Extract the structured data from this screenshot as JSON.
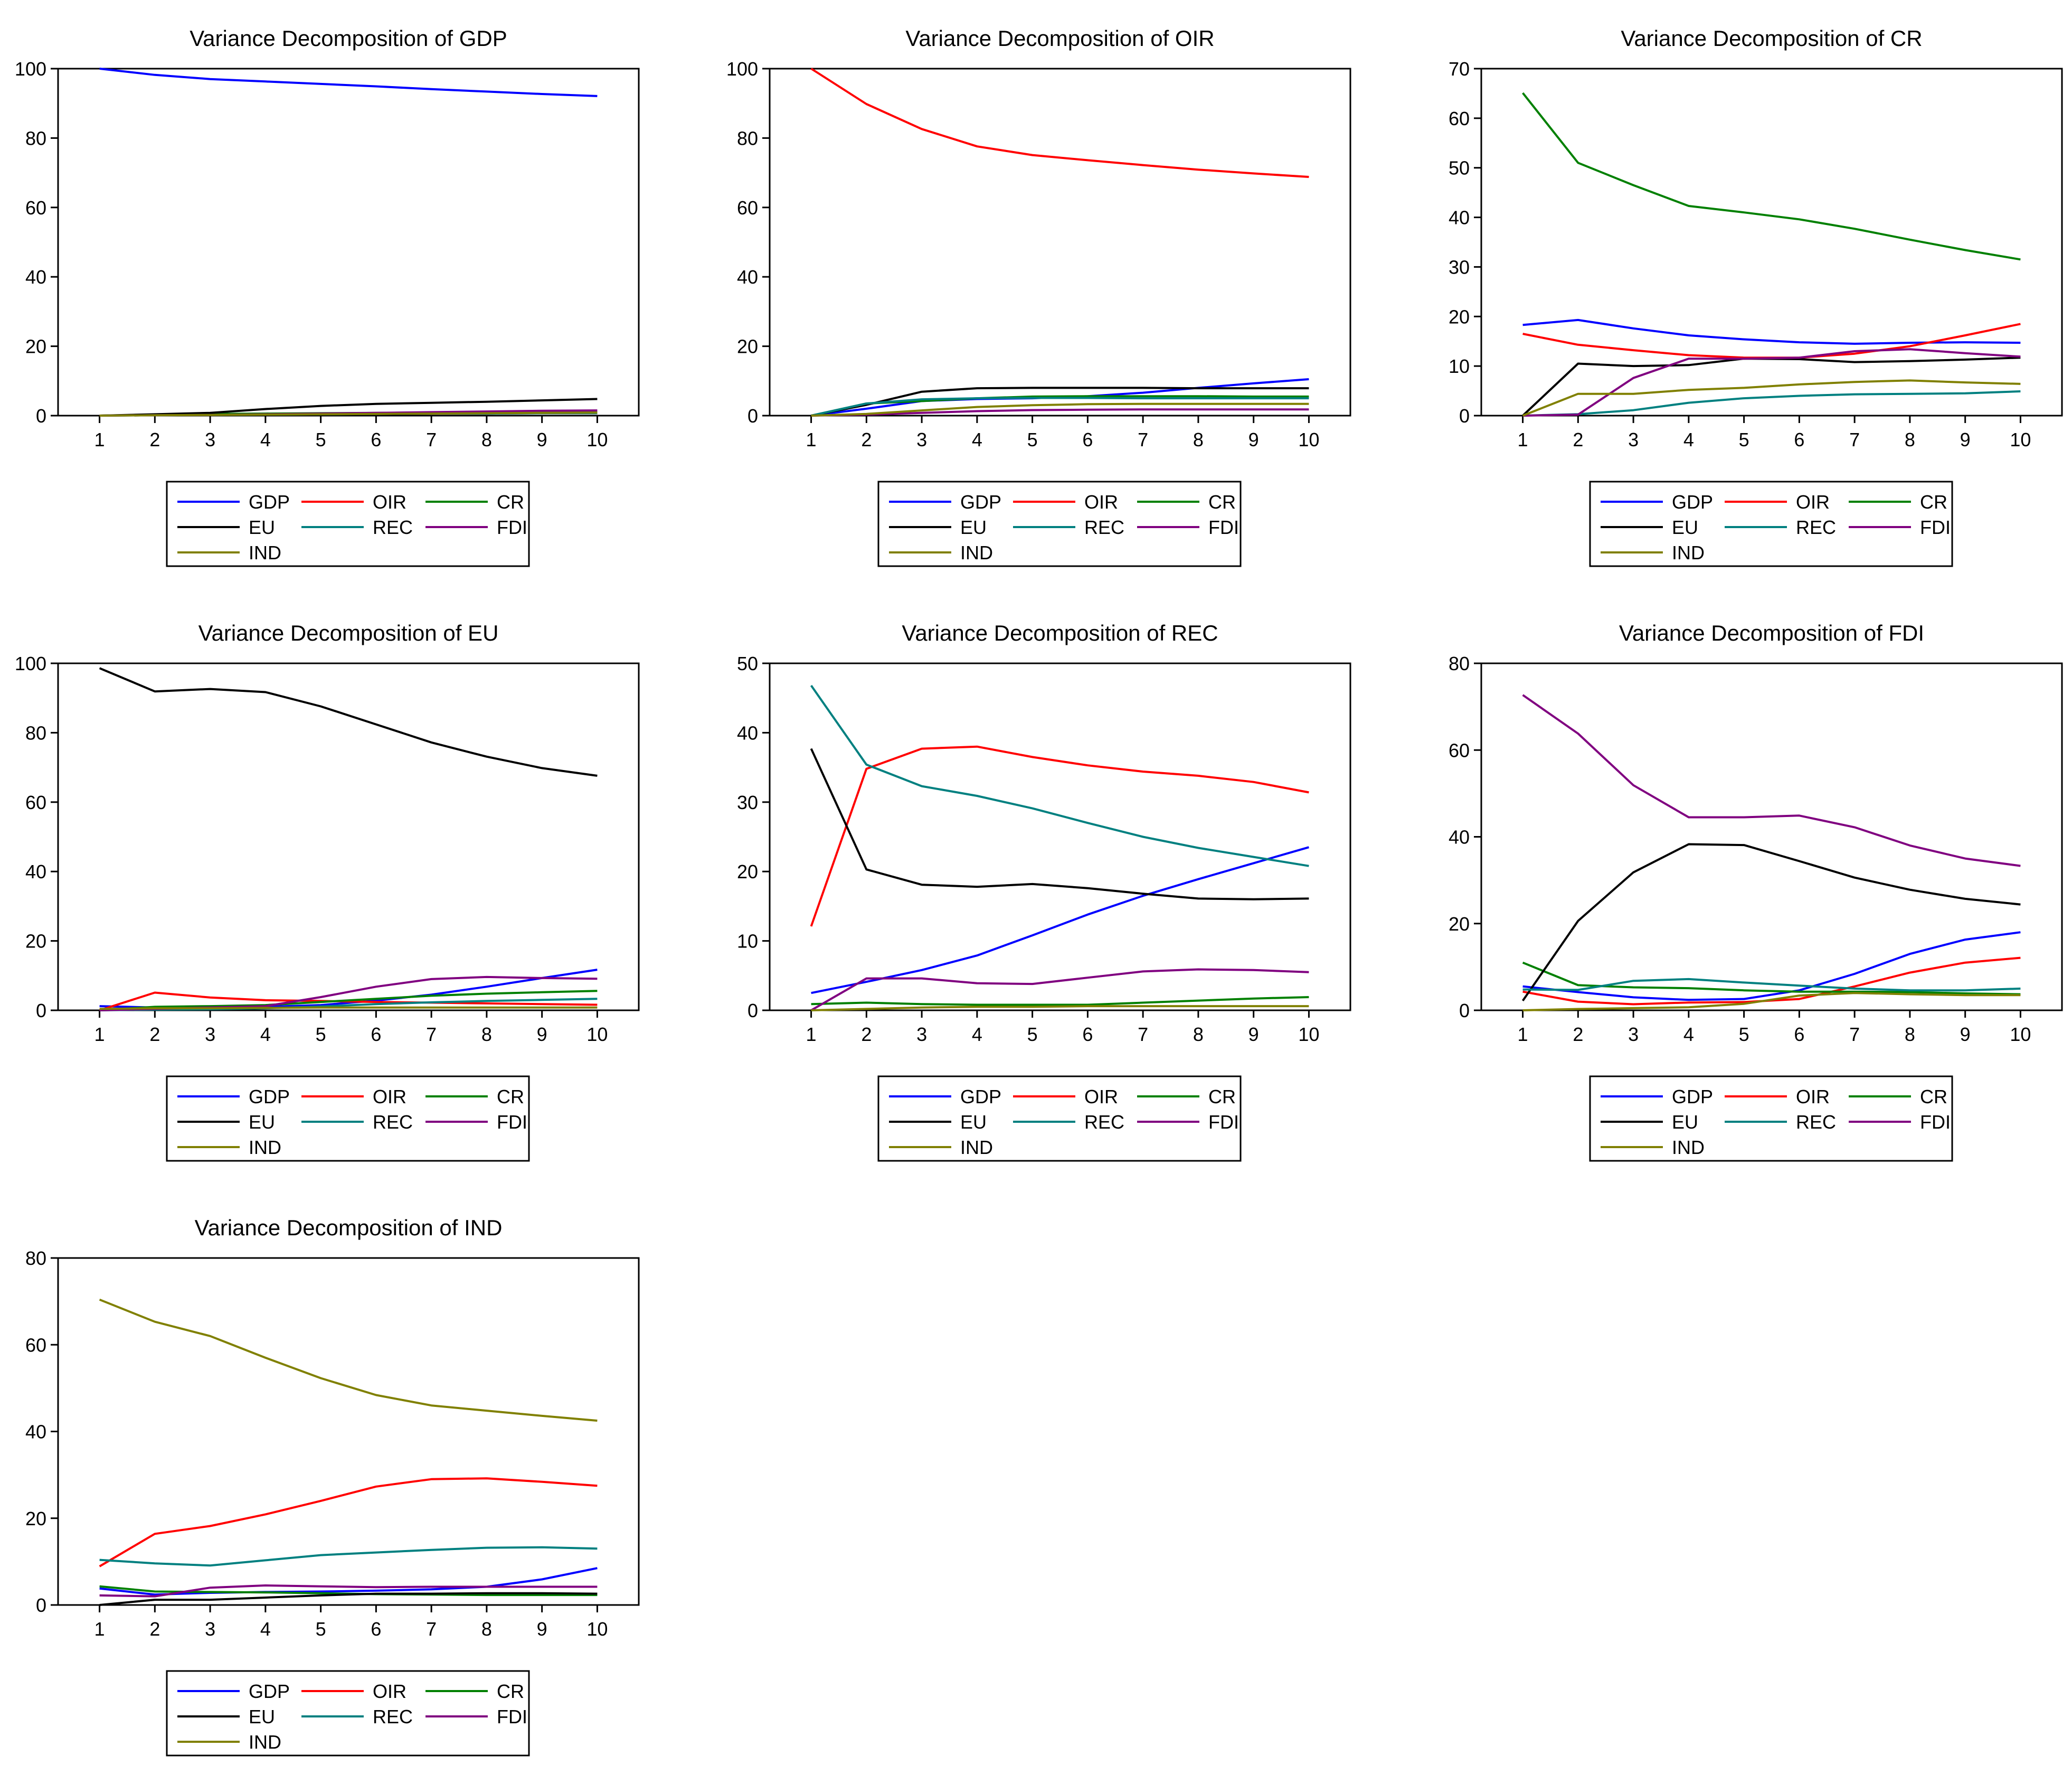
{
  "figure": {
    "title": "Variance Decomposition"
  },
  "colors": {
    "GDP": "#0000ff",
    "OIR": "#ff0000",
    "CR": "#008000",
    "EU": "#000000",
    "REC": "#008080",
    "FDI": "#800080",
    "IND": "#808000"
  },
  "chart_data": [
    {
      "type": "line",
      "title": "Variance Decomposition of GDP",
      "x": [
        1,
        2,
        3,
        4,
        5,
        6,
        7,
        8,
        9,
        10
      ],
      "ylim": [
        0,
        100
      ],
      "yticks": [
        0,
        20,
        40,
        60,
        80,
        100
      ],
      "legend_position": "bottom",
      "series": [
        {
          "name": "GDP",
          "values": [
            100,
            98.2,
            97,
            96.3,
            95.6,
            94.9,
            94.1,
            93.4,
            92.7,
            92.1
          ]
        },
        {
          "name": "OIR",
          "values": [
            0,
            0.2,
            0.3,
            0.4,
            0.5,
            0.5,
            0.6,
            0.6,
            0.7,
            0.7
          ]
        },
        {
          "name": "CR",
          "values": [
            0,
            0.3,
            0.5,
            0.6,
            0.7,
            0.8,
            0.9,
            1.0,
            1.0,
            1.1
          ]
        },
        {
          "name": "EU",
          "values": [
            0,
            0.4,
            0.8,
            1.9,
            2.8,
            3.4,
            3.7,
            4.0,
            4.4,
            4.8
          ]
        },
        {
          "name": "REC",
          "values": [
            0,
            0.1,
            0.2,
            0.3,
            0.4,
            0.5,
            0.6,
            0.6,
            0.7,
            0.7
          ]
        },
        {
          "name": "FDI",
          "values": [
            0,
            0.1,
            0.2,
            0.4,
            0.6,
            0.8,
            1.0,
            1.2,
            1.4,
            1.5
          ]
        },
        {
          "name": "IND",
          "values": [
            0,
            0.1,
            0.2,
            0.3,
            0.4,
            0.5,
            0.6,
            0.7,
            0.8,
            0.9
          ]
        }
      ]
    },
    {
      "type": "line",
      "title": "Variance Decomposition of OIR",
      "x": [
        1,
        2,
        3,
        4,
        5,
        6,
        7,
        8,
        9,
        10
      ],
      "ylim": [
        0,
        100
      ],
      "yticks": [
        0,
        20,
        40,
        60,
        80,
        100
      ],
      "legend_position": "bottom",
      "series": [
        {
          "name": "GDP",
          "values": [
            0,
            2.0,
            4.2,
            4.8,
            5.0,
            5.6,
            6.6,
            8.0,
            9.3,
            10.5
          ]
        },
        {
          "name": "OIR",
          "values": [
            100,
            89.8,
            82.6,
            77.6,
            75.1,
            73.6,
            72.2,
            70.9,
            69.8,
            68.8
          ]
        },
        {
          "name": "CR",
          "values": [
            0,
            3.5,
            4.2,
            5.0,
            5.5,
            5.6,
            5.6,
            5.6,
            5.5,
            5.5
          ]
        },
        {
          "name": "EU",
          "values": [
            0,
            3.1,
            6.9,
            7.9,
            8.0,
            8.0,
            8.0,
            7.9,
            7.9,
            7.9
          ]
        },
        {
          "name": "REC",
          "values": [
            0,
            3.5,
            4.7,
            5.0,
            5.1,
            5.1,
            5.0,
            5.0,
            5.0,
            5.0
          ]
        },
        {
          "name": "FDI",
          "values": [
            0,
            0.3,
            0.8,
            1.3,
            1.6,
            1.7,
            1.8,
            1.8,
            1.8,
            1.8
          ]
        },
        {
          "name": "IND",
          "values": [
            0,
            0.5,
            1.5,
            2.5,
            3.0,
            3.3,
            3.4,
            3.4,
            3.4,
            3.4
          ]
        }
      ]
    },
    {
      "type": "line",
      "title": "Variance Decomposition of CR",
      "x": [
        1,
        2,
        3,
        4,
        5,
        6,
        7,
        8,
        9,
        10
      ],
      "ylim": [
        0,
        70
      ],
      "yticks": [
        0,
        10,
        20,
        30,
        40,
        50,
        60,
        70
      ],
      "legend_position": "bottom",
      "series": [
        {
          "name": "GDP",
          "values": [
            18.3,
            19.3,
            17.6,
            16.2,
            15.4,
            14.8,
            14.5,
            14.7,
            14.8,
            14.7
          ]
        },
        {
          "name": "OIR",
          "values": [
            16.5,
            14.3,
            13.2,
            12.2,
            11.7,
            11.7,
            12.5,
            14.0,
            16.2,
            18.5
          ]
        },
        {
          "name": "CR",
          "values": [
            65.1,
            51.0,
            46.5,
            42.3,
            41.0,
            39.6,
            37.7,
            35.5,
            33.4,
            31.5
          ]
        },
        {
          "name": "EU",
          "values": [
            0,
            10.5,
            10.0,
            10.2,
            11.5,
            11.4,
            10.8,
            11.0,
            11.3,
            11.7
          ]
        },
        {
          "name": "REC",
          "values": [
            0,
            0.3,
            1.1,
            2.6,
            3.5,
            4.0,
            4.3,
            4.4,
            4.5,
            4.9
          ]
        },
        {
          "name": "FDI",
          "values": [
            0,
            0.2,
            7.6,
            11.5,
            11.5,
            11.7,
            13.0,
            13.4,
            12.6,
            11.9
          ]
        },
        {
          "name": "IND",
          "values": [
            0,
            4.4,
            4.4,
            5.2,
            5.6,
            6.3,
            6.8,
            7.1,
            6.7,
            6.4
          ]
        }
      ]
    },
    {
      "type": "line",
      "title": "Variance Decomposition of EU",
      "x": [
        1,
        2,
        3,
        4,
        5,
        6,
        7,
        8,
        9,
        10
      ],
      "ylim": [
        0,
        100
      ],
      "yticks": [
        0,
        20,
        40,
        60,
        80,
        100
      ],
      "legend_position": "bottom",
      "series": [
        {
          "name": "GDP",
          "values": [
            1.2,
            0.8,
            0.8,
            1.0,
            1.5,
            2.8,
            4.5,
            6.8,
            9.3,
            11.7
          ]
        },
        {
          "name": "OIR",
          "values": [
            0,
            5.1,
            3.7,
            2.9,
            2.7,
            2.4,
            2.2,
            2.0,
            1.8,
            1.6
          ]
        },
        {
          "name": "CR",
          "values": [
            0,
            1.0,
            1.2,
            1.5,
            2.4,
            3.3,
            4.2,
            4.8,
            5.2,
            5.6
          ]
        },
        {
          "name": "EU",
          "values": [
            98.6,
            91.9,
            92.6,
            91.7,
            87.6,
            82.4,
            77.2,
            73.1,
            69.8,
            67.6
          ]
        },
        {
          "name": "REC",
          "values": [
            0,
            0.2,
            0.3,
            0.6,
            1.1,
            1.8,
            2.3,
            2.7,
            3.0,
            3.3
          ]
        },
        {
          "name": "FDI",
          "values": [
            0,
            0.4,
            0.8,
            1.2,
            3.8,
            6.8,
            9.0,
            9.6,
            9.3,
            9.1
          ]
        },
        {
          "name": "IND",
          "values": [
            0.4,
            0.6,
            0.6,
            0.7,
            0.8,
            0.8,
            0.8,
            0.8,
            0.8,
            0.8
          ]
        }
      ]
    },
    {
      "type": "line",
      "title": "Variance Decomposition of REC",
      "x": [
        1,
        2,
        3,
        4,
        5,
        6,
        7,
        8,
        9,
        10
      ],
      "ylim": [
        0,
        50
      ],
      "yticks": [
        0,
        10,
        20,
        30,
        40,
        50
      ],
      "legend_position": "bottom",
      "series": [
        {
          "name": "GDP",
          "values": [
            2.5,
            4.1,
            5.8,
            7.9,
            10.8,
            13.8,
            16.5,
            18.9,
            21.2,
            23.5
          ]
        },
        {
          "name": "OIR",
          "values": [
            12.1,
            34.8,
            37.7,
            38.0,
            36.5,
            35.3,
            34.4,
            33.8,
            32.9,
            31.4
          ]
        },
        {
          "name": "CR",
          "values": [
            0.9,
            1.1,
            0.9,
            0.8,
            0.8,
            0.8,
            1.1,
            1.4,
            1.7,
            1.9
          ]
        },
        {
          "name": "EU",
          "values": [
            37.7,
            20.3,
            18.1,
            17.8,
            18.2,
            17.6,
            16.8,
            16.1,
            16.0,
            16.1
          ]
        },
        {
          "name": "REC",
          "values": [
            46.8,
            35.4,
            32.3,
            30.9,
            29.1,
            27.0,
            25.0,
            23.4,
            22.1,
            20.8
          ]
        },
        {
          "name": "FDI",
          "values": [
            0,
            4.6,
            4.6,
            3.9,
            3.8,
            4.7,
            5.6,
            5.9,
            5.8,
            5.5
          ]
        },
        {
          "name": "IND",
          "values": [
            0,
            0.2,
            0.4,
            0.5,
            0.5,
            0.6,
            0.6,
            0.6,
            0.6,
            0.6
          ]
        }
      ]
    },
    {
      "type": "line",
      "title": "Variance Decomposition of FDI",
      "x": [
        1,
        2,
        3,
        4,
        5,
        6,
        7,
        8,
        9,
        10
      ],
      "ylim": [
        0,
        80
      ],
      "yticks": [
        0,
        20,
        40,
        60,
        80
      ],
      "legend_position": "bottom",
      "series": [
        {
          "name": "GDP",
          "values": [
            5.5,
            4.2,
            3.0,
            2.4,
            2.6,
            4.6,
            8.4,
            13.0,
            16.3,
            18.0
          ]
        },
        {
          "name": "OIR",
          "values": [
            4.3,
            2.0,
            1.4,
            1.8,
            1.9,
            2.6,
            5.5,
            8.7,
            11.0,
            12.1
          ]
        },
        {
          "name": "CR",
          "values": [
            11.0,
            5.8,
            5.3,
            5.1,
            4.6,
            4.3,
            4.3,
            4.2,
            3.9,
            3.7
          ]
        },
        {
          "name": "EU",
          "values": [
            2.2,
            20.6,
            31.8,
            38.3,
            38.1,
            34.4,
            30.6,
            27.8,
            25.7,
            24.4
          ]
        },
        {
          "name": "REC",
          "values": [
            4.8,
            4.7,
            6.8,
            7.2,
            6.4,
            5.7,
            5.0,
            4.6,
            4.6,
            5.0
          ]
        },
        {
          "name": "FDI",
          "values": [
            72.7,
            63.8,
            51.9,
            44.5,
            44.5,
            44.9,
            42.2,
            38.0,
            35.0,
            33.3
          ]
        },
        {
          "name": "IND",
          "values": [
            0,
            0.3,
            0.5,
            0.7,
            1.5,
            3.4,
            4.0,
            3.7,
            3.5,
            3.5
          ]
        }
      ]
    },
    {
      "type": "line",
      "title": "Variance Decomposition of IND",
      "x": [
        1,
        2,
        3,
        4,
        5,
        6,
        7,
        8,
        9,
        10
      ],
      "ylim": [
        0,
        80
      ],
      "yticks": [
        0,
        20,
        40,
        60,
        80
      ],
      "legend_position": "bottom",
      "series": [
        {
          "name": "GDP",
          "values": [
            3.8,
            2.4,
            2.8,
            3.0,
            3.1,
            3.3,
            3.6,
            4.2,
            5.9,
            8.5
          ]
        },
        {
          "name": "OIR",
          "values": [
            8.9,
            16.4,
            18.2,
            20.9,
            24.0,
            27.3,
            29.0,
            29.2,
            28.4,
            27.5
          ]
        },
        {
          "name": "CR",
          "values": [
            4.3,
            3.1,
            3.0,
            2.9,
            2.7,
            2.5,
            2.4,
            2.3,
            2.3,
            2.3
          ]
        },
        {
          "name": "EU",
          "values": [
            0,
            1.2,
            1.2,
            1.7,
            2.2,
            2.6,
            2.6,
            2.7,
            2.7,
            2.6
          ]
        },
        {
          "name": "REC",
          "values": [
            10.4,
            9.6,
            9.1,
            10.3,
            11.5,
            12.1,
            12.7,
            13.2,
            13.3,
            13.0
          ]
        },
        {
          "name": "FDI",
          "values": [
            2.2,
            2.0,
            4.0,
            4.5,
            4.3,
            4.1,
            4.2,
            4.2,
            4.2,
            4.2
          ]
        },
        {
          "name": "IND",
          "values": [
            70.4,
            65.3,
            62.0,
            57.0,
            52.3,
            48.4,
            46.0,
            44.8,
            43.6,
            42.5
          ]
        }
      ]
    }
  ]
}
